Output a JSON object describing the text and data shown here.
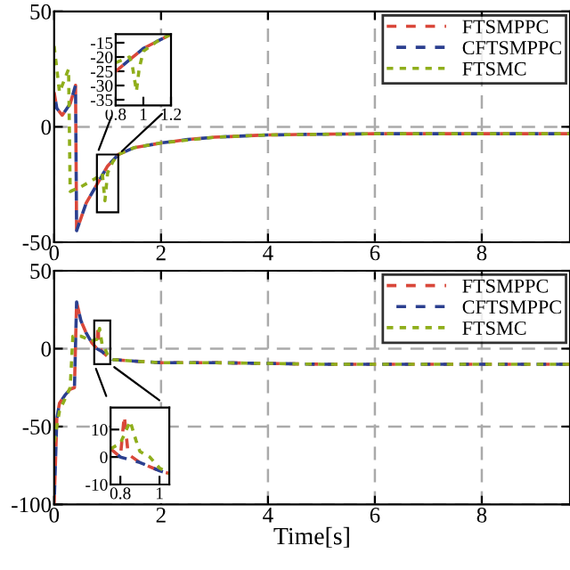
{
  "chart_data": [
    {
      "type": "line",
      "xlim": [
        0,
        9.65
      ],
      "xticks": [
        0,
        2,
        4,
        6,
        8
      ],
      "ylim": [
        -50,
        50
      ],
      "yticks": [
        50,
        0,
        -50
      ],
      "grid": true,
      "legend": "top right",
      "marker": "none",
      "series": [
        {
          "name": "FTSMPPC",
          "color": "#d9473a",
          "line_style": "dashed",
          "x": [
            0,
            0.05,
            0.15,
            0.3,
            0.4,
            0.42,
            0.6,
            0.8,
            1.0,
            1.2,
            1.5,
            2,
            2.5,
            3,
            4,
            5,
            6,
            8,
            9.65
          ],
          "values": [
            15,
            8,
            5,
            10,
            18,
            -45,
            -33,
            -25,
            -17,
            -12,
            -9,
            -7,
            -5.5,
            -4.5,
            -3.5,
            -3.2,
            -3,
            -3,
            -3
          ]
        },
        {
          "name": "CFTSMPPC",
          "color": "#2b3f8f",
          "line_style": "dashed",
          "x": [
            0,
            0.05,
            0.15,
            0.3,
            0.4,
            0.42,
            0.6,
            0.8,
            1.0,
            1.2,
            1.5,
            2,
            2.5,
            3,
            4,
            5,
            6,
            8,
            9.65
          ],
          "values": [
            15,
            8,
            5,
            10,
            18,
            -45,
            -33,
            -25,
            -17,
            -12,
            -9,
            -7,
            -5.5,
            -4.5,
            -3.5,
            -3.2,
            -3,
            -3,
            -3
          ]
        },
        {
          "name": "FTSMC",
          "color": "#8fae1b",
          "line_style": "dotted",
          "x": [
            0,
            0.1,
            0.27,
            0.3,
            0.5,
            0.8,
            0.9,
            0.95,
            1.0,
            1.1,
            1.2,
            1.5,
            2,
            3,
            4,
            6,
            8,
            9.65
          ],
          "values": [
            35,
            15,
            25,
            -28,
            -26,
            -22,
            -20,
            -32,
            -20,
            -15,
            -12,
            -9,
            -7,
            -4.5,
            -3.5,
            -3,
            -3,
            -3
          ]
        }
      ]
    },
    {
      "type": "line",
      "xlim": [
        0.8,
        1.2
      ],
      "xticks": [
        0.8,
        1,
        1.2
      ],
      "ylim": [
        -37,
        -12
      ],
      "yticks": [
        -15,
        -20,
        -25,
        -30,
        -35
      ],
      "marker": "none",
      "series": [
        {
          "color": "#d9473a",
          "line_style": "dashed",
          "x": [
            0.8,
            0.9,
            1.0,
            1.1,
            1.2
          ],
          "values": [
            -25,
            -21,
            -17,
            -14.5,
            -12
          ]
        },
        {
          "color": "#2b3f8f",
          "line_style": "dashed",
          "x": [
            0.8,
            0.9,
            1.0,
            1.1,
            1.2
          ],
          "values": [
            -25,
            -21,
            -17,
            -14.5,
            -12
          ]
        },
        {
          "color": "#8fae1b",
          "line_style": "dotted",
          "x": [
            0.8,
            0.85,
            0.9,
            0.92,
            0.95,
            0.97,
            1.0,
            1.1,
            1.2
          ],
          "values": [
            -22,
            -21,
            -20,
            -23,
            -32,
            -24,
            -18,
            -14.5,
            -12
          ]
        }
      ]
    },
    {
      "type": "line",
      "xlim": [
        0,
        9.65
      ],
      "xticks": [
        0,
        2,
        4,
        6,
        8
      ],
      "ylim": [
        -100,
        50
      ],
      "yticks": [
        50,
        0,
        -50,
        -100
      ],
      "xlabel": "Time[s]",
      "grid": true,
      "legend": "top right",
      "marker": "none",
      "series": [
        {
          "name": "FTSMPPC",
          "color": "#d9473a",
          "line_style": "dashed",
          "x": [
            0,
            0.05,
            0.1,
            0.2,
            0.3,
            0.38,
            0.42,
            0.5,
            0.6,
            0.7,
            0.8,
            0.82,
            0.84,
            0.9,
            1.0,
            1.1,
            1.5,
            2,
            3,
            5,
            8,
            9.65
          ],
          "values": [
            -100,
            -45,
            -35,
            -30,
            -26,
            -25,
            30,
            18,
            10,
            4,
            0,
            15,
            1,
            -2,
            -5,
            -7,
            -8,
            -9,
            -9,
            -10,
            -10,
            -10
          ]
        },
        {
          "name": "CFTSMPPC",
          "color": "#2b3f8f",
          "line_style": "dashed",
          "x": [
            0,
            0.05,
            0.1,
            0.2,
            0.3,
            0.38,
            0.42,
            0.5,
            0.6,
            0.7,
            0.8,
            0.9,
            1.0,
            1.1,
            1.5,
            2,
            3,
            5,
            8,
            9.65
          ],
          "values": [
            -100,
            -45,
            -35,
            -30,
            -26,
            -25,
            30,
            18,
            10,
            4,
            0,
            -2,
            -5,
            -7,
            -8,
            -9,
            -9,
            -10,
            -10,
            -10
          ]
        },
        {
          "name": "FTSMC",
          "color": "#8fae1b",
          "line_style": "dotted",
          "x": [
            0,
            0.1,
            0.3,
            0.35,
            0.5,
            0.7,
            0.8,
            0.85,
            0.9,
            0.95,
            1.0,
            1.1,
            1.5,
            2,
            3,
            5,
            8,
            9.65
          ],
          "values": [
            -60,
            -40,
            -25,
            8,
            8,
            5,
            6,
            13,
            2,
            0,
            -4,
            -7,
            -8,
            -9,
            -9,
            -10,
            -10,
            -10
          ]
        }
      ]
    },
    {
      "type": "line",
      "xlim": [
        0.75,
        1.05
      ],
      "xticks": [
        0.8,
        1
      ],
      "ylim": [
        -10,
        18
      ],
      "yticks": [
        10,
        0,
        -10
      ],
      "marker": "none",
      "series": [
        {
          "color": "#d9473a",
          "line_style": "dashed",
          "x": [
            0.75,
            0.8,
            0.82,
            0.84,
            0.9,
            1.0,
            1.05
          ],
          "values": [
            3,
            0,
            15,
            1,
            -2,
            -5,
            -6
          ]
        },
        {
          "color": "#2b3f8f",
          "line_style": "dashed",
          "x": [
            0.75,
            0.8,
            0.9,
            1.0,
            1.05
          ],
          "values": [
            3,
            0,
            -2,
            -5,
            -6
          ]
        },
        {
          "color": "#8fae1b",
          "line_style": "dotted",
          "x": [
            0.75,
            0.8,
            0.85,
            0.88,
            0.9,
            0.95,
            1.0,
            1.05
          ],
          "values": [
            3,
            5,
            13,
            6,
            2,
            0,
            -4,
            -6
          ]
        }
      ]
    }
  ]
}
